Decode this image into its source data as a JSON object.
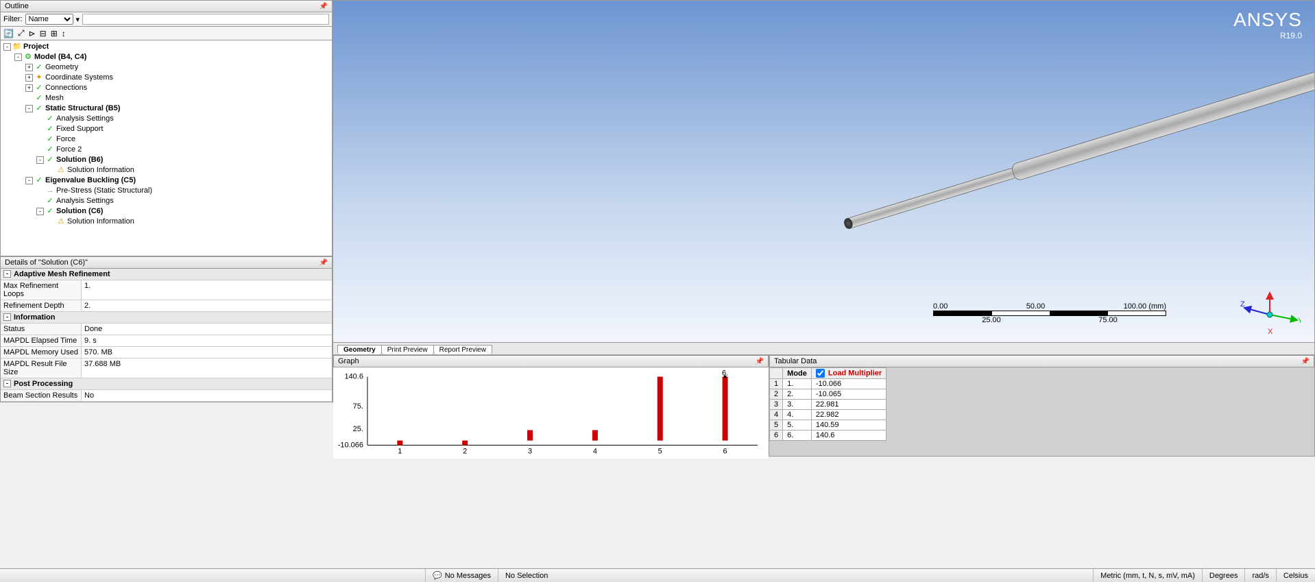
{
  "outline": {
    "title": "Outline",
    "filter_label": "Filter:",
    "filter_type": "Name",
    "tree": {
      "project": "Project",
      "model": "Model (B4, C4)",
      "geometry": "Geometry",
      "coord": "Coordinate Systems",
      "connections": "Connections",
      "mesh": "Mesh",
      "static": "Static Structural (B5)",
      "analy1": "Analysis Settings",
      "fixed": "Fixed Support",
      "force": "Force",
      "force2": "Force 2",
      "sol_b6": "Solution (B6)",
      "solinfo1": "Solution Information",
      "eigen": "Eigenvalue Buckling (C5)",
      "prestress": "Pre-Stress (Static Structural)",
      "analy2": "Analysis Settings",
      "sol_c6": "Solution (C6)",
      "solinfo2": "Solution Information"
    }
  },
  "details": {
    "title": "Details of \"Solution (C6)\"",
    "sections": [
      {
        "name": "Adaptive Mesh Refinement",
        "rows": [
          {
            "k": "Max Refinement Loops",
            "v": "1."
          },
          {
            "k": "Refinement Depth",
            "v": "2."
          }
        ]
      },
      {
        "name": "Information",
        "rows": [
          {
            "k": "Status",
            "v": "Done"
          },
          {
            "k": "MAPDL Elapsed Time",
            "v": "9. s"
          },
          {
            "k": "MAPDL Memory Used",
            "v": "570. MB"
          },
          {
            "k": "MAPDL Result File Size",
            "v": "37.688 MB"
          }
        ]
      },
      {
        "name": "Post Processing",
        "rows": [
          {
            "k": "Beam Section Results",
            "v": "No"
          }
        ]
      }
    ]
  },
  "viewport": {
    "logo": "ANSYS",
    "version": "R19.0",
    "ruler": {
      "t0": "0.00",
      "t1": "50.00",
      "t2": "100.00 (mm)",
      "b0": "25.00",
      "b1": "75.00"
    },
    "triad": {
      "x": "X",
      "y": "Y",
      "z": "Z"
    }
  },
  "view_tabs": {
    "t1": "Geometry",
    "t2": "Print Preview",
    "t3": "Report Preview"
  },
  "graph": {
    "title": "Graph",
    "yticks": [
      "140.6",
      "75.",
      "25.",
      "-10.066"
    ],
    "xticks": [
      "1",
      "2",
      "3",
      "4",
      "5",
      "6"
    ],
    "values": [
      -10.066,
      -10.065,
      22.981,
      22.982,
      140.59,
      140.6
    ],
    "ymin": -10.066,
    "ymax": 140.6,
    "bar_color": "#cc0000",
    "callout": "6."
  },
  "tabular": {
    "title": "Tabular Data",
    "col_mode": "Mode",
    "col_mult": "Load Multiplier",
    "rows": [
      {
        "n": "1",
        "mode": "1.",
        "mult": "-10.066"
      },
      {
        "n": "2",
        "mode": "2.",
        "mult": "-10.065"
      },
      {
        "n": "3",
        "mode": "3.",
        "mult": "22.981"
      },
      {
        "n": "4",
        "mode": "4.",
        "mult": "22.982"
      },
      {
        "n": "5",
        "mode": "5.",
        "mult": "140.59"
      },
      {
        "n": "6",
        "mode": "6.",
        "mult": "140.6"
      }
    ]
  },
  "status": {
    "msgs": "No Messages",
    "sel": "No Selection",
    "units": "Metric (mm, t, N, s, mV, mA)",
    "deg": "Degrees",
    "rad": "rad/s",
    "cel": "Celsius"
  }
}
